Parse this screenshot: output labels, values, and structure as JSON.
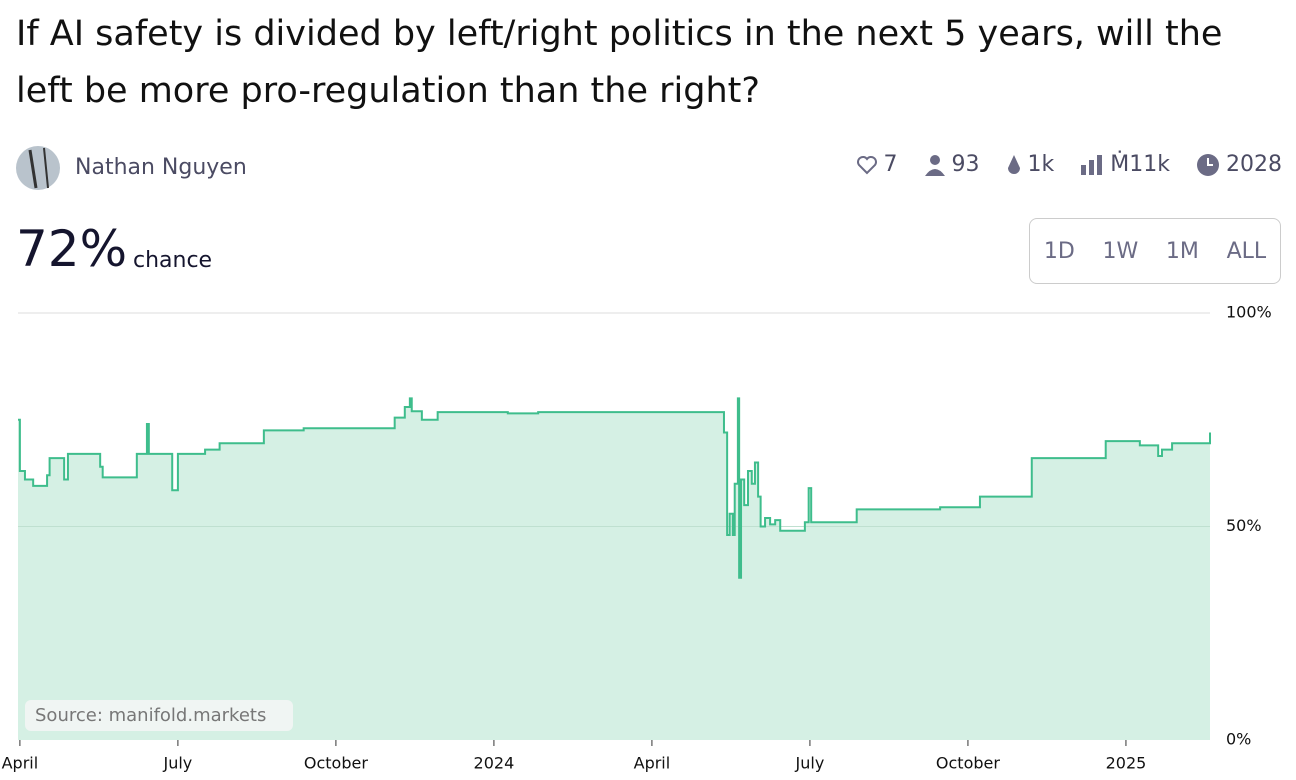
{
  "header": {
    "title": "If AI safety is divided by left/right politics in the next 5 years, will the left be more pro-regulation than the right?"
  },
  "author": {
    "name": "Nathan Nguyen"
  },
  "stats": [
    "7",
    "93",
    "1k",
    "Ṁ11k",
    "2028"
  ],
  "probability": {
    "value": "72%",
    "label": "chance"
  },
  "time_ranges": [
    "1D",
    "1W",
    "1M",
    "ALL"
  ],
  "source": "Source: manifold.markets",
  "chart_data": {
    "type": "line",
    "step": true,
    "color": "#3ebd8c",
    "fill": "#d5f0e4",
    "grid": true,
    "x": [
      2023.247,
      2023.25,
      2023.258,
      2023.271,
      2023.293,
      2023.297,
      2023.32,
      2023.326,
      2023.377,
      2023.381,
      2023.435,
      2023.451,
      2023.454,
      2023.491,
      2023.5,
      2023.543,
      2023.566,
      2023.636,
      2023.699,
      2023.843,
      2023.859,
      2023.867,
      2023.87,
      2023.886,
      2023.911,
      2024.022,
      2024.07,
      2024.364,
      2024.369,
      2024.373,
      2024.378,
      2024.381,
      2024.386,
      2024.388,
      2024.391,
      2024.396,
      2024.402,
      2024.408,
      2024.413,
      2024.418,
      2024.422,
      2024.429,
      2024.437,
      2024.445,
      2024.453,
      2024.492,
      2024.498,
      2024.502,
      2024.574,
      2024.706,
      2024.769,
      2024.851,
      2024.968,
      2025.022,
      2025.051,
      2025.057,
      2025.073,
      2025.133
    ],
    "values": [
      75,
      63,
      61,
      59.5,
      62,
      66,
      61,
      67,
      64,
      61.5,
      67,
      74,
      67,
      58.5,
      67,
      68,
      69.5,
      72.5,
      73,
      75.5,
      78,
      80,
      77,
      75,
      76.8,
      76.5,
      76.8,
      72,
      48,
      53,
      48,
      60,
      80,
      38,
      61,
      55,
      63,
      60,
      65,
      57,
      50,
      52,
      50.5,
      51.5,
      49,
      51,
      59,
      51,
      54,
      54.5,
      57,
      66,
      70,
      69,
      66.5,
      68,
      69.5,
      72
    ],
    "xlim": [
      2023.247,
      2025.133
    ],
    "xticks": [
      {
        "value": 2023.25,
        "label": "April"
      },
      {
        "value": 2023.5,
        "label": "July"
      },
      {
        "value": 2023.75,
        "label": "October"
      },
      2024,
      {
        "value": 2024.25,
        "label": "April"
      },
      {
        "value": 2024.5,
        "label": "July"
      },
      {
        "value": 2024.75,
        "label": "October"
      },
      2025
    ],
    "ylim": [
      0,
      100
    ],
    "yticks": [
      {
        "value": 0,
        "label": "0%"
      },
      {
        "value": 50,
        "label": "50%"
      },
      {
        "value": 100,
        "label": "100%"
      }
    ]
  }
}
